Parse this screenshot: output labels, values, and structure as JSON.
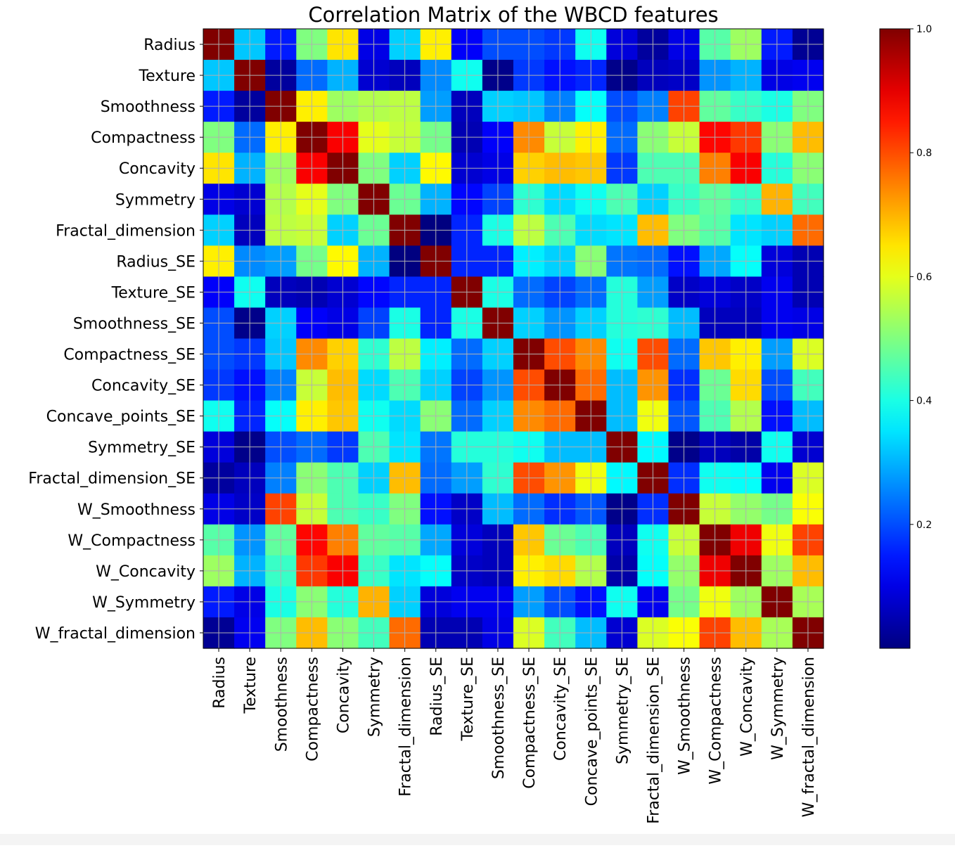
{
  "chart_data": {
    "type": "heatmap",
    "title": "Correlation Matrix of the WBCD features",
    "rows": [
      "Radius",
      "Texture",
      "Smoothness",
      "Compactness",
      "Concavity",
      "Symmetry",
      "Fractal_dimension",
      "Radius_SE",
      "Texture_SE",
      "Smoothness_SE",
      "Compactness_SE",
      "Concavity_SE",
      "Concave_points_SE",
      "Symmetry_SE",
      "Fractal_dimension_SE",
      "W_Smoothness",
      "W_Compactness",
      "W_Concavity",
      "W_Symmetry",
      "W_fractal_dimension"
    ],
    "columns": [
      "Radius",
      "Texture",
      "Smoothness",
      "Compactness",
      "Concavity",
      "Symmetry",
      "Fractal_dimension",
      "Radius_SE",
      "Texture_SE",
      "Smoothness_SE",
      "Compactness_SE",
      "Concavity_SE",
      "Concave_points_SE",
      "Symmetry_SE",
      "Fractal_dimension_SE",
      "W_Smoothness",
      "W_Compactness",
      "W_Concavity",
      "W_Symmetry",
      "W_fractal_dimension"
    ],
    "values": [
      [
        1.0,
        0.32,
        0.15,
        0.5,
        0.65,
        0.1,
        0.33,
        0.64,
        0.12,
        0.2,
        0.2,
        0.18,
        0.39,
        0.09,
        0.03,
        0.1,
        0.46,
        0.53,
        0.15,
        0.02
      ],
      [
        0.32,
        1.0,
        0.03,
        0.23,
        0.3,
        0.08,
        0.06,
        0.26,
        0.39,
        0.01,
        0.18,
        0.14,
        0.16,
        0.01,
        0.06,
        0.07,
        0.27,
        0.3,
        0.1,
        0.11
      ],
      [
        0.15,
        0.03,
        1.0,
        0.64,
        0.53,
        0.55,
        0.56,
        0.28,
        0.06,
        0.33,
        0.32,
        0.25,
        0.38,
        0.2,
        0.25,
        0.81,
        0.47,
        0.43,
        0.4,
        0.5
      ],
      [
        0.5,
        0.23,
        0.64,
        1.0,
        0.88,
        0.6,
        0.57,
        0.49,
        0.05,
        0.12,
        0.74,
        0.57,
        0.64,
        0.23,
        0.51,
        0.57,
        0.87,
        0.82,
        0.51,
        0.69
      ],
      [
        0.65,
        0.3,
        0.53,
        0.88,
        1.0,
        0.5,
        0.33,
        0.63,
        0.08,
        0.1,
        0.67,
        0.69,
        0.68,
        0.18,
        0.45,
        0.45,
        0.75,
        0.88,
        0.41,
        0.51
      ],
      [
        0.1,
        0.08,
        0.55,
        0.6,
        0.5,
        1.0,
        0.48,
        0.3,
        0.13,
        0.19,
        0.42,
        0.34,
        0.39,
        0.45,
        0.33,
        0.43,
        0.47,
        0.43,
        0.7,
        0.44
      ],
      [
        0.33,
        0.06,
        0.56,
        0.57,
        0.33,
        0.48,
        1.0,
        0.0,
        0.16,
        0.4,
        0.56,
        0.45,
        0.34,
        0.35,
        0.69,
        0.5,
        0.46,
        0.35,
        0.33,
        0.77
      ],
      [
        0.64,
        0.26,
        0.28,
        0.49,
        0.63,
        0.3,
        0.0,
        1.0,
        0.16,
        0.16,
        0.36,
        0.33,
        0.51,
        0.24,
        0.23,
        0.14,
        0.29,
        0.38,
        0.09,
        0.05
      ],
      [
        0.12,
        0.39,
        0.06,
        0.05,
        0.08,
        0.13,
        0.16,
        0.16,
        1.0,
        0.4,
        0.23,
        0.19,
        0.23,
        0.41,
        0.28,
        0.07,
        0.09,
        0.07,
        0.11,
        0.05
      ],
      [
        0.2,
        0.01,
        0.33,
        0.12,
        0.1,
        0.19,
        0.4,
        0.16,
        0.4,
        1.0,
        0.33,
        0.27,
        0.33,
        0.41,
        0.42,
        0.31,
        0.06,
        0.06,
        0.11,
        0.1
      ],
      [
        0.2,
        0.18,
        0.32,
        0.74,
        0.67,
        0.42,
        0.56,
        0.36,
        0.23,
        0.33,
        1.0,
        0.8,
        0.74,
        0.39,
        0.8,
        0.23,
        0.68,
        0.64,
        0.28,
        0.59
      ],
      [
        0.18,
        0.14,
        0.25,
        0.57,
        0.69,
        0.34,
        0.45,
        0.33,
        0.19,
        0.27,
        0.8,
        1.0,
        0.77,
        0.31,
        0.73,
        0.17,
        0.48,
        0.66,
        0.2,
        0.44
      ],
      [
        0.39,
        0.16,
        0.38,
        0.64,
        0.68,
        0.39,
        0.34,
        0.51,
        0.23,
        0.33,
        0.74,
        0.77,
        1.0,
        0.31,
        0.61,
        0.21,
        0.45,
        0.55,
        0.14,
        0.31
      ],
      [
        0.09,
        0.01,
        0.2,
        0.23,
        0.18,
        0.45,
        0.35,
        0.24,
        0.41,
        0.41,
        0.39,
        0.31,
        0.31,
        1.0,
        0.37,
        0.01,
        0.06,
        0.04,
        0.39,
        0.08
      ],
      [
        0.03,
        0.06,
        0.25,
        0.51,
        0.45,
        0.33,
        0.69,
        0.23,
        0.28,
        0.42,
        0.8,
        0.73,
        0.61,
        0.37,
        1.0,
        0.17,
        0.39,
        0.38,
        0.11,
        0.59
      ],
      [
        0.1,
        0.07,
        0.81,
        0.57,
        0.45,
        0.43,
        0.5,
        0.14,
        0.07,
        0.31,
        0.23,
        0.17,
        0.21,
        0.01,
        0.17,
        1.0,
        0.57,
        0.52,
        0.49,
        0.62
      ],
      [
        0.46,
        0.27,
        0.47,
        0.87,
        0.75,
        0.47,
        0.46,
        0.29,
        0.09,
        0.06,
        0.68,
        0.48,
        0.45,
        0.06,
        0.39,
        0.57,
        1.0,
        0.89,
        0.61,
        0.81
      ],
      [
        0.53,
        0.3,
        0.43,
        0.82,
        0.88,
        0.43,
        0.35,
        0.38,
        0.07,
        0.06,
        0.64,
        0.66,
        0.55,
        0.04,
        0.38,
        0.52,
        0.89,
        1.0,
        0.53,
        0.69
      ],
      [
        0.15,
        0.1,
        0.4,
        0.51,
        0.41,
        0.7,
        0.33,
        0.09,
        0.11,
        0.11,
        0.28,
        0.2,
        0.14,
        0.39,
        0.11,
        0.49,
        0.61,
        0.53,
        1.0,
        0.54
      ],
      [
        0.02,
        0.11,
        0.5,
        0.69,
        0.51,
        0.44,
        0.77,
        0.05,
        0.05,
        0.1,
        0.59,
        0.44,
        0.31,
        0.08,
        0.59,
        0.62,
        0.81,
        0.69,
        0.54,
        1.0
      ]
    ],
    "colormap": "jet",
    "vmin": 0.0,
    "vmax": 1.0,
    "colorbar_ticks": [
      "0.2",
      "0.4",
      "0.6",
      "0.8",
      "1.0"
    ],
    "colorbar_tick_values": [
      0.2,
      0.4,
      0.6,
      0.8,
      1.0
    ],
    "grid": true,
    "grid_color": "#b0b0b0",
    "colorbar_position": "right",
    "x_tick_rotation": "vertical"
  }
}
